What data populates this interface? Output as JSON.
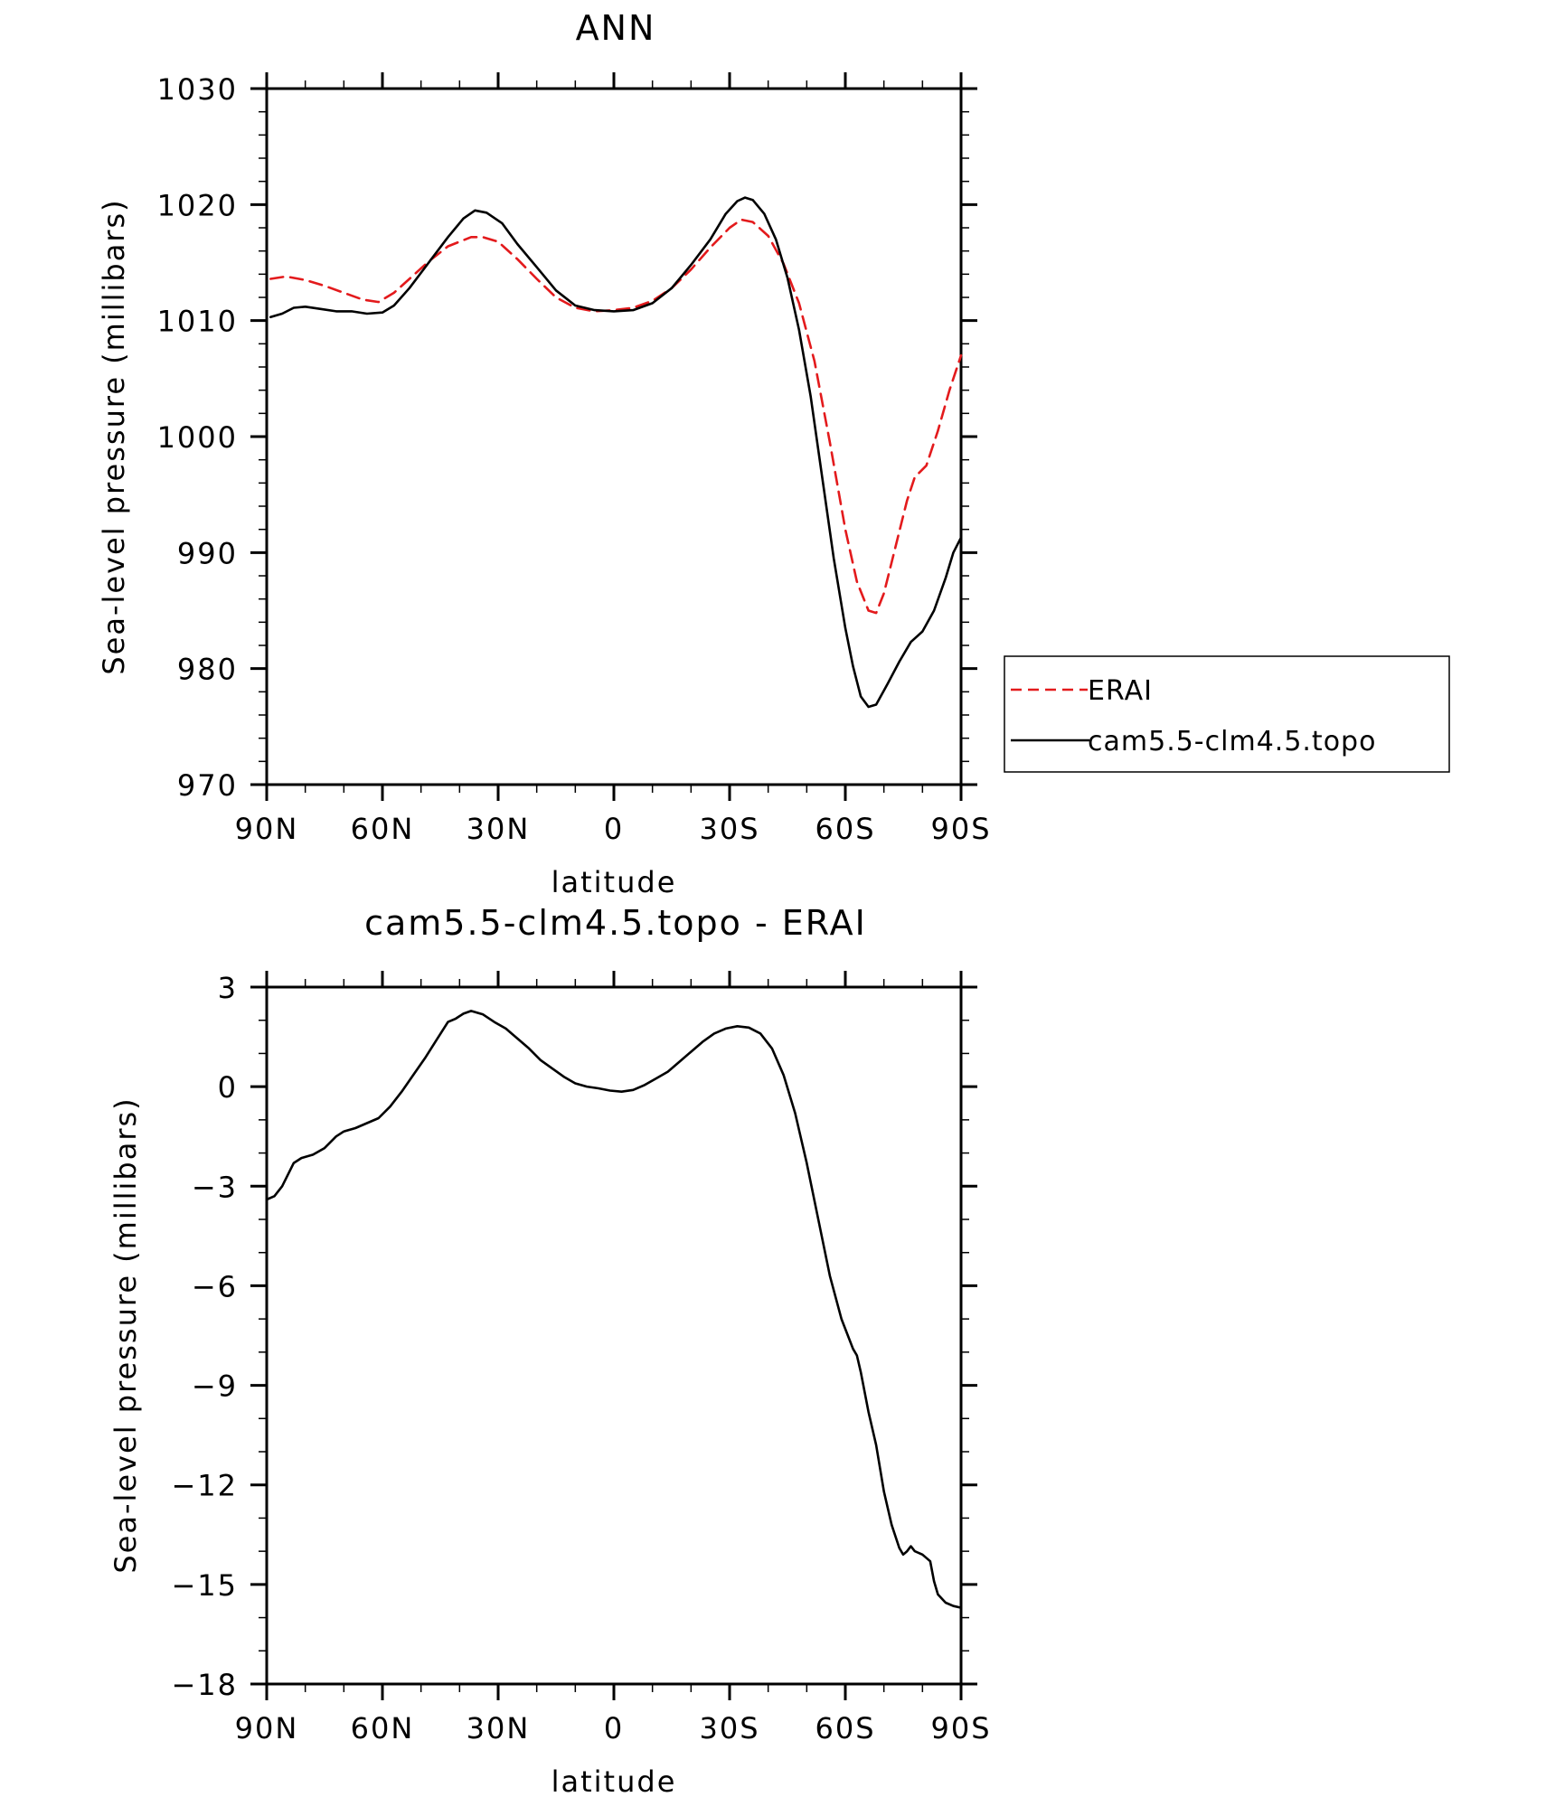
{
  "chart_data": [
    {
      "type": "line",
      "title": "ANN",
      "xlabel": "latitude",
      "ylabel": "Sea-level pressure (millibars)",
      "x_direction": "90N (left) to 90S (right)",
      "xlim": [
        90,
        -90
      ],
      "ylim": [
        970,
        1030
      ],
      "xticks": [
        {
          "value": 90,
          "label": "90N"
        },
        {
          "value": 60,
          "label": "60N"
        },
        {
          "value": 30,
          "label": "30N"
        },
        {
          "value": 0,
          "label": "0"
        },
        {
          "value": -30,
          "label": "30S"
        },
        {
          "value": -60,
          "label": "60S"
        },
        {
          "value": -90,
          "label": "90S"
        }
      ],
      "yticks": [
        {
          "value": 970,
          "label": "970"
        },
        {
          "value": 980,
          "label": "980"
        },
        {
          "value": 990,
          "label": "990"
        },
        {
          "value": 1000,
          "label": "1000"
        },
        {
          "value": 1010,
          "label": "1010"
        },
        {
          "value": 1020,
          "label": "1020"
        },
        {
          "value": 1030,
          "label": "1030"
        }
      ],
      "grid": false,
      "legend_position": "right, outside plot, middle",
      "series": [
        {
          "name": "ERAI",
          "color": "#e31a1c",
          "dash": "dashed",
          "points": [
            [
              89,
              1013.6
            ],
            [
              85,
              1013.8
            ],
            [
              80,
              1013.5
            ],
            [
              75,
              1013.0
            ],
            [
              70,
              1012.4
            ],
            [
              65,
              1011.8
            ],
            [
              61,
              1011.6
            ],
            [
              57,
              1012.4
            ],
            [
              53,
              1013.6
            ],
            [
              48,
              1015.1
            ],
            [
              43,
              1016.4
            ],
            [
              37,
              1017.2
            ],
            [
              34,
              1017.2
            ],
            [
              30,
              1016.8
            ],
            [
              25,
              1015.3
            ],
            [
              20,
              1013.6
            ],
            [
              15,
              1012.0
            ],
            [
              10,
              1011.1
            ],
            [
              5,
              1010.8
            ],
            [
              0,
              1010.9
            ],
            [
              -5,
              1011.1
            ],
            [
              -10,
              1011.7
            ],
            [
              -15,
              1012.8
            ],
            [
              -20,
              1014.4
            ],
            [
              -25,
              1016.3
            ],
            [
              -30,
              1018.0
            ],
            [
              -33,
              1018.7
            ],
            [
              -36,
              1018.5
            ],
            [
              -40,
              1017.3
            ],
            [
              -44,
              1014.9
            ],
            [
              -48,
              1011.5
            ],
            [
              -52,
              1006.5
            ],
            [
              -56,
              999.5
            ],
            [
              -60,
              992.0
            ],
            [
              -63,
              987.5
            ],
            [
              -66,
              985.0
            ],
            [
              -68,
              984.8
            ],
            [
              -70,
              986.5
            ],
            [
              -73,
              990.5
            ],
            [
              -76,
              994.5
            ],
            [
              -78,
              996.5
            ],
            [
              -81,
              997.5
            ],
            [
              -84,
              1000.5
            ],
            [
              -87,
              1004.0
            ],
            [
              -90,
              1007.0
            ]
          ]
        },
        {
          "name": "cam5.5-clm4.5.topo",
          "color": "#000000",
          "dash": "solid",
          "points": [
            [
              89,
              1010.3
            ],
            [
              86,
              1010.6
            ],
            [
              83,
              1011.1
            ],
            [
              80,
              1011.2
            ],
            [
              76,
              1011.0
            ],
            [
              72,
              1010.8
            ],
            [
              68,
              1010.8
            ],
            [
              64,
              1010.6
            ],
            [
              60,
              1010.7
            ],
            [
              57,
              1011.3
            ],
            [
              53,
              1012.8
            ],
            [
              48,
              1015.0
            ],
            [
              43,
              1017.2
            ],
            [
              39,
              1018.8
            ],
            [
              36,
              1019.5
            ],
            [
              33,
              1019.3
            ],
            [
              29,
              1018.4
            ],
            [
              25,
              1016.6
            ],
            [
              20,
              1014.6
            ],
            [
              15,
              1012.6
            ],
            [
              10,
              1011.3
            ],
            [
              5,
              1010.9
            ],
            [
              0,
              1010.8
            ],
            [
              -5,
              1010.9
            ],
            [
              -10,
              1011.5
            ],
            [
              -15,
              1012.8
            ],
            [
              -20,
              1014.8
            ],
            [
              -25,
              1017.0
            ],
            [
              -29,
              1019.2
            ],
            [
              -32,
              1020.3
            ],
            [
              -34,
              1020.6
            ],
            [
              -36,
              1020.4
            ],
            [
              -39,
              1019.2
            ],
            [
              -42,
              1017.0
            ],
            [
              -45,
              1013.7
            ],
            [
              -48,
              1009.2
            ],
            [
              -51,
              1003.5
            ],
            [
              -54,
              996.5
            ],
            [
              -57,
              989.5
            ],
            [
              -60,
              983.5
            ],
            [
              -62,
              980.2
            ],
            [
              -64,
              977.6
            ],
            [
              -66,
              976.7
            ],
            [
              -68,
              976.9
            ],
            [
              -71,
              978.7
            ],
            [
              -74,
              980.6
            ],
            [
              -77,
              982.3
            ],
            [
              -80,
              983.2
            ],
            [
              -83,
              985.0
            ],
            [
              -86,
              987.8
            ],
            [
              -88,
              990.0
            ],
            [
              -90,
              991.3
            ]
          ]
        }
      ]
    },
    {
      "type": "line",
      "title": "cam5.5-clm4.5.topo - ERAI",
      "xlabel": "latitude",
      "ylabel": "Sea-level pressure (millibars)",
      "xlim": [
        90,
        -90
      ],
      "ylim": [
        -18,
        3
      ],
      "xticks": [
        {
          "value": 90,
          "label": "90N"
        },
        {
          "value": 60,
          "label": "60N"
        },
        {
          "value": 30,
          "label": "30N"
        },
        {
          "value": 0,
          "label": "0"
        },
        {
          "value": -30,
          "label": "30S"
        },
        {
          "value": -60,
          "label": "60S"
        },
        {
          "value": -90,
          "label": "90S"
        }
      ],
      "yticks": [
        {
          "value": 3,
          "label": "3"
        },
        {
          "value": 0,
          "label": "0"
        },
        {
          "value": -3,
          "label": "−3"
        },
        {
          "value": -6,
          "label": "−6"
        },
        {
          "value": -9,
          "label": "−9"
        },
        {
          "value": -12,
          "label": "−12"
        },
        {
          "value": -15,
          "label": "−15"
        },
        {
          "value": -18,
          "label": "−18"
        }
      ],
      "grid": false,
      "series": [
        {
          "color": "#000000",
          "dash": "solid",
          "points": [
            [
              90,
              -3.4
            ],
            [
              88,
              -3.3
            ],
            [
              86,
              -3.0
            ],
            [
              83,
              -2.3
            ],
            [
              81,
              -2.15
            ],
            [
              78,
              -2.05
            ],
            [
              75,
              -1.85
            ],
            [
              72,
              -1.5
            ],
            [
              70,
              -1.35
            ],
            [
              67,
              -1.25
            ],
            [
              64,
              -1.1
            ],
            [
              61,
              -0.95
            ],
            [
              58,
              -0.6
            ],
            [
              55,
              -0.15
            ],
            [
              52,
              0.35
            ],
            [
              49,
              0.85
            ],
            [
              46,
              1.4
            ],
            [
              43,
              1.95
            ],
            [
              41,
              2.05
            ],
            [
              39,
              2.2
            ],
            [
              37,
              2.28
            ],
            [
              34,
              2.18
            ],
            [
              31,
              1.95
            ],
            [
              28,
              1.75
            ],
            [
              25,
              1.45
            ],
            [
              22,
              1.15
            ],
            [
              19,
              0.8
            ],
            [
              16,
              0.55
            ],
            [
              13,
              0.3
            ],
            [
              10,
              0.1
            ],
            [
              7,
              0.0
            ],
            [
              4,
              -0.05
            ],
            [
              1,
              -0.12
            ],
            [
              -2,
              -0.15
            ],
            [
              -5,
              -0.1
            ],
            [
              -8,
              0.05
            ],
            [
              -11,
              0.25
            ],
            [
              -14,
              0.45
            ],
            [
              -17,
              0.75
            ],
            [
              -20,
              1.05
            ],
            [
              -23,
              1.35
            ],
            [
              -26,
              1.6
            ],
            [
              -29,
              1.75
            ],
            [
              -32,
              1.82
            ],
            [
              -35,
              1.78
            ],
            [
              -38,
              1.6
            ],
            [
              -41,
              1.15
            ],
            [
              -44,
              0.35
            ],
            [
              -47,
              -0.8
            ],
            [
              -50,
              -2.3
            ],
            [
              -53,
              -4.0
            ],
            [
              -56,
              -5.7
            ],
            [
              -59,
              -7.0
            ],
            [
              -62,
              -7.9
            ],
            [
              -63,
              -8.1
            ],
            [
              -64,
              -8.6
            ],
            [
              -66,
              -9.8
            ],
            [
              -68,
              -10.8
            ],
            [
              -70,
              -12.2
            ],
            [
              -72,
              -13.2
            ],
            [
              -74,
              -13.9
            ],
            [
              -75,
              -14.1
            ],
            [
              -76,
              -14.0
            ],
            [
              -77,
              -13.85
            ],
            [
              -78,
              -14.0
            ],
            [
              -80,
              -14.1
            ],
            [
              -82,
              -14.3
            ],
            [
              -83,
              -14.9
            ],
            [
              -84,
              -15.3
            ],
            [
              -86,
              -15.55
            ],
            [
              -88,
              -15.65
            ],
            [
              -90,
              -15.7
            ]
          ]
        }
      ]
    }
  ]
}
